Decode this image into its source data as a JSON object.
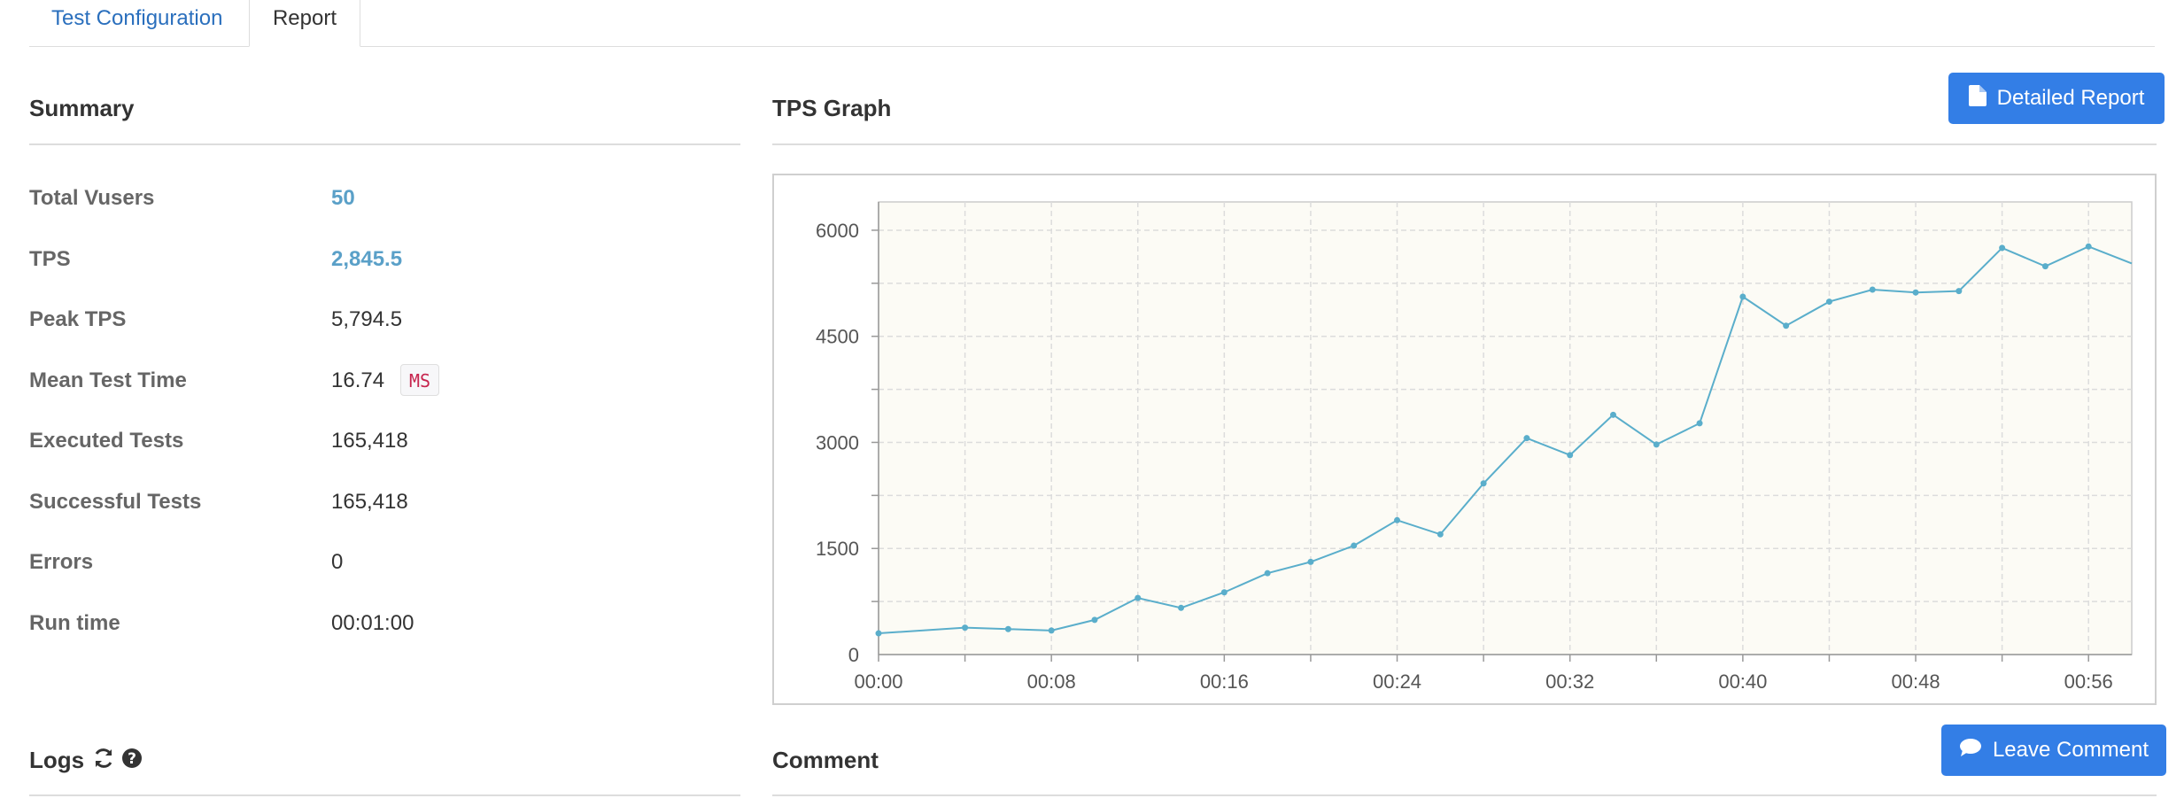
{
  "tabs": [
    {
      "label": "Test Configuration"
    },
    {
      "label": "Report"
    }
  ],
  "summary": {
    "title": "Summary",
    "rows": [
      {
        "label": "Total Vusers",
        "value": "50"
      },
      {
        "label": "TPS",
        "value": "2,845.5"
      },
      {
        "label": "Peak TPS",
        "value": "5,794.5"
      },
      {
        "label": "Mean Test Time",
        "value": "16.74",
        "unit": "MS"
      },
      {
        "label": "Executed Tests",
        "value": "165,418"
      },
      {
        "label": "Successful Tests",
        "value": "165,418"
      },
      {
        "label": "Errors",
        "value": "0"
      },
      {
        "label": "Run time",
        "value": "00:01:00"
      }
    ]
  },
  "tps_graph": {
    "title": "TPS Graph",
    "detailed_report_label": "Detailed Report",
    "icon": "file-icon"
  },
  "logs": {
    "title": "Logs",
    "icons": [
      "refresh-icon",
      "help-icon"
    ]
  },
  "comment": {
    "title": "Comment",
    "leave_comment_label": "Leave Comment",
    "icon": "comment-icon"
  },
  "colors": {
    "accent": "#337ee6",
    "line": "#5aaecb",
    "plot_bg": "#fcfbf5",
    "link_value": "#5aa0c8"
  },
  "chart_data": {
    "type": "line",
    "title": "",
    "xlabel": "",
    "ylabel": "",
    "x_ticks": [
      "00:00",
      "00:08",
      "00:16",
      "00:24",
      "00:32",
      "00:40",
      "00:48",
      "00:56"
    ],
    "y_ticks": [
      0,
      1500,
      3000,
      4500,
      6000
    ],
    "xlim": [
      0,
      58
    ],
    "ylim": [
      0,
      6400
    ],
    "grid": true,
    "series": [
      {
        "x": [
          0,
          4,
          6,
          8,
          10,
          12,
          14,
          16,
          18,
          20,
          22,
          24,
          26,
          28,
          30,
          32,
          34,
          36,
          38,
          40,
          42,
          44,
          46,
          48,
          50,
          52,
          54,
          56,
          58
        ],
        "values": [
          300,
          380,
          360,
          340,
          490,
          800,
          660,
          880,
          1150,
          1310,
          1540,
          1900,
          1700,
          2420,
          3060,
          2820,
          3390,
          2970,
          3270,
          5060,
          4650,
          4990,
          5160,
          5120,
          5140,
          5750,
          5490,
          5770,
          5530
        ]
      }
    ]
  }
}
